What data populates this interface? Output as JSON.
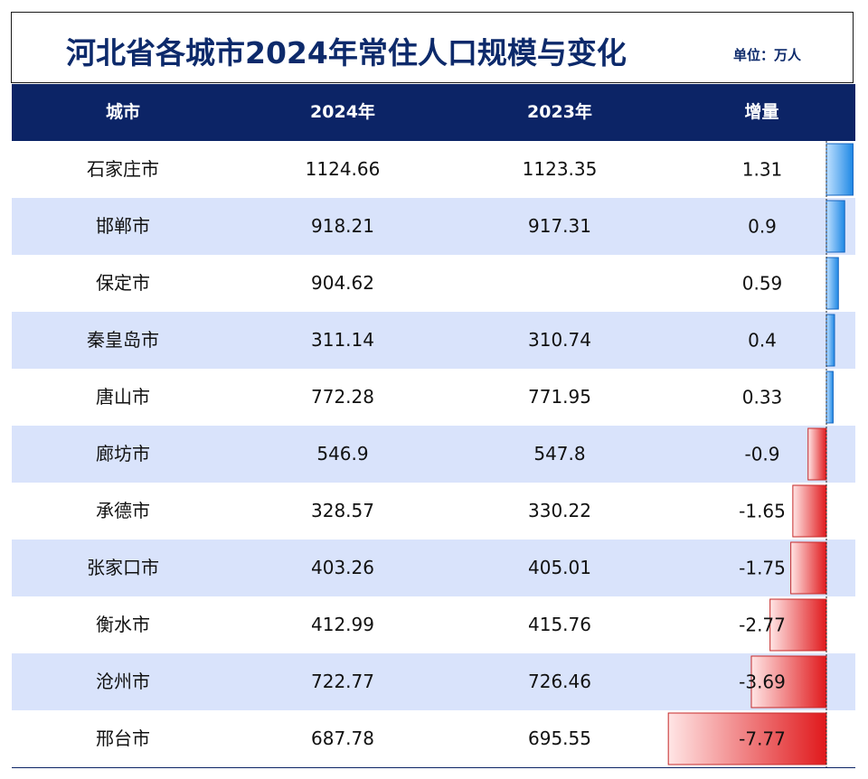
{
  "title": "河北省各城市2024年常住人口规模与变化",
  "unit": "单位：万人",
  "columns": [
    "城市",
    "2024年",
    "2023年",
    "增量"
  ],
  "colors": {
    "header_bg": "#0c2466",
    "positive": "#1e88e5",
    "negative": "#e53935",
    "alt_row": "#d9e3fb"
  },
  "chart_data": {
    "type": "table",
    "title": "河北省各城市2024年常住人口规模与变化",
    "categories": [
      "石家庄市",
      "邯郸市",
      "保定市",
      "秦皇岛市",
      "唐山市",
      "廊坊市",
      "承德市",
      "张家口市",
      "衡水市",
      "沧州市",
      "邢台市"
    ],
    "series": [
      {
        "name": "2024年",
        "values": [
          "1124.66",
          "918.21",
          "904.62",
          "311.14",
          "772.28",
          "546.9",
          "328.57",
          "403.26",
          "412.99",
          "722.77",
          "687.78"
        ]
      },
      {
        "name": "2023年",
        "values": [
          "1123.35",
          "917.31",
          "",
          "310.74",
          "771.95",
          "547.8",
          "330.22",
          "405.01",
          "415.76",
          "726.46",
          "695.55"
        ]
      },
      {
        "name": "增量",
        "values": [
          "1.31",
          "0.9",
          "0.59",
          "0.4",
          "0.33",
          "-0.9",
          "-1.65",
          "-1.75",
          "-2.77",
          "-3.69",
          "-7.77"
        ]
      }
    ]
  }
}
